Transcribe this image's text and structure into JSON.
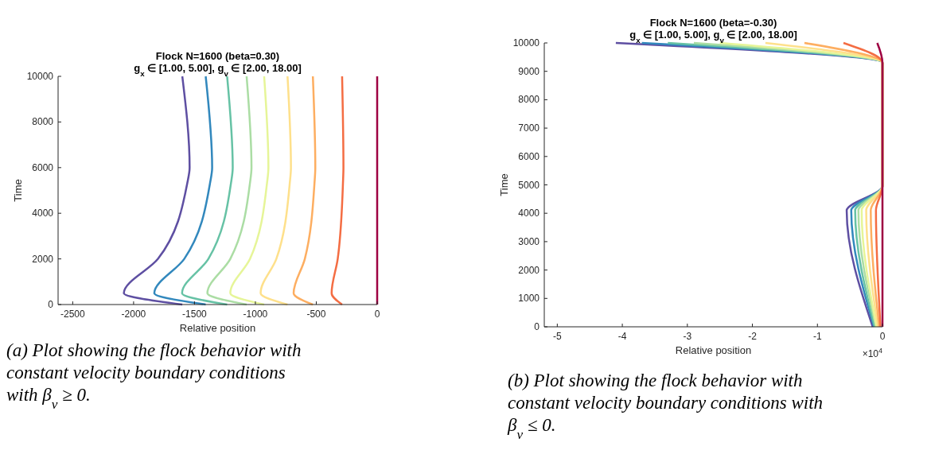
{
  "chart_data": [
    {
      "type": "line",
      "title": "Flock N=1600 (beta=0.30)",
      "subtitle": "g$_{x}$ ∈ [1.00, 5.00], g$_{v}$ ∈ [2.00, 18.00]",
      "xlabel": "Relative position",
      "ylabel": "Time",
      "xlim": [
        -2620,
        0
      ],
      "xticks": [
        -2500,
        -2000,
        -1500,
        -1000,
        -500,
        0
      ],
      "ylim": [
        0,
        10000
      ],
      "yticks": [
        0,
        2000,
        4000,
        6000,
        8000,
        10000
      ],
      "grid": false,
      "marker": "none",
      "line_style": "solid",
      "annotations": [
        "(a) Plot showing the flock behavior with constant velocity boundary conditions with β$_{v}$ ≥ 0."
      ],
      "series": [
        {
          "color": "#5e4fa2",
          "x": [
            -1600,
            -2080,
            -1800,
            -1560,
            -1540,
            -1600
          ],
          "values": [
            0,
            500,
            2000,
            5300,
            6000,
            10000
          ]
        },
        {
          "color": "#3288bd",
          "x": [
            -1408,
            -1830,
            -1584,
            -1373,
            -1355,
            -1408
          ],
          "values": [
            0,
            500,
            2000,
            5300,
            6000,
            10000
          ]
        },
        {
          "color": "#66c2a5",
          "x": [
            -1232,
            -1602,
            -1386,
            -1201,
            -1186,
            -1232
          ],
          "values": [
            0,
            500,
            2000,
            5300,
            6000,
            10000
          ]
        },
        {
          "color": "#abdda4",
          "x": [
            -1072,
            -1394,
            -1206,
            -1045,
            -1032,
            -1072
          ],
          "values": [
            0,
            500,
            2000,
            5300,
            6000,
            10000
          ]
        },
        {
          "color": "#e6f598",
          "x": [
            -928,
            -1206,
            -1044,
            -905,
            -893,
            -928
          ],
          "values": [
            0,
            500,
            2000,
            5300,
            6000,
            10000
          ]
        },
        {
          "color": "#fee08b",
          "x": [
            -736,
            -957,
            -828,
            -718,
            -708,
            -736
          ],
          "values": [
            0,
            500,
            2000,
            5300,
            6000,
            10000
          ]
        },
        {
          "color": "#fdae61",
          "x": [
            -528,
            -686,
            -594,
            -515,
            -508,
            -528
          ],
          "values": [
            0,
            500,
            2000,
            5300,
            6000,
            10000
          ]
        },
        {
          "color": "#f46d43",
          "x": [
            -288,
            -374,
            -324,
            -281,
            -277,
            -288
          ],
          "values": [
            0,
            500,
            2000,
            5300,
            6000,
            10000
          ]
        },
        {
          "color": "#9e0142",
          "x": [
            0,
            0,
            0,
            0,
            0,
            0
          ],
          "values": [
            0,
            500,
            2000,
            5300,
            6000,
            10000
          ]
        }
      ]
    },
    {
      "type": "line",
      "title": "Flock N=1600 (beta=-0.30)",
      "subtitle": "g$_{x}$ ∈ [1.00, 5.00], g$_{v}$ ∈ [2.00, 18.00]",
      "xlabel": "Relative position",
      "ylabel": "Time",
      "xlim": [
        -5.2,
        0
      ],
      "xticks": [
        -5,
        -4,
        -3,
        -2,
        -1,
        0
      ],
      "ylim": [
        0,
        10000
      ],
      "yticks": [
        0,
        1000,
        2000,
        3000,
        4000,
        5000,
        6000,
        7000,
        8000,
        9000,
        10000
      ],
      "grid": false,
      "marker": "none",
      "line_style": "solid",
      "annotations": [
        "×10$^{4}$",
        "(b) Plot showing the flock behavior with constant velocity boundary conditions with β$_{v}$ ≤ 0."
      ],
      "series": [
        {
          "color": "#5e4fa2",
          "x": [
            -0.15,
            -0.55,
            0,
            0,
            -4.1
          ],
          "values": [
            0,
            4100,
            4950,
            9300,
            10000
          ]
        },
        {
          "color": "#3288bd",
          "x": [
            -0.13,
            -0.48,
            0,
            0,
            -3.7
          ],
          "values": [
            0,
            4100,
            4950,
            9300,
            10000
          ]
        },
        {
          "color": "#66c2a5",
          "x": [
            -0.12,
            -0.42,
            0,
            0,
            -3.3
          ],
          "values": [
            0,
            4100,
            4950,
            9300,
            10000
          ]
        },
        {
          "color": "#abdda4",
          "x": [
            -0.1,
            -0.37,
            0,
            0,
            -2.9
          ],
          "values": [
            0,
            4100,
            4950,
            9300,
            10000
          ]
        },
        {
          "color": "#e6f598",
          "x": [
            -0.09,
            -0.32,
            0,
            0,
            -2.5
          ],
          "values": [
            0,
            4100,
            4950,
            9300,
            10000
          ]
        },
        {
          "color": "#fee08b",
          "x": [
            -0.07,
            -0.25,
            0,
            0,
            -1.8
          ],
          "values": [
            0,
            4100,
            4950,
            9300,
            10000
          ]
        },
        {
          "color": "#fdae61",
          "x": [
            -0.05,
            -0.18,
            0,
            0,
            -1.2
          ],
          "values": [
            0,
            4100,
            4950,
            9300,
            10000
          ]
        },
        {
          "color": "#f46d43",
          "x": [
            -0.03,
            -0.1,
            0,
            0,
            -0.6
          ],
          "values": [
            0,
            4100,
            4950,
            9300,
            10000
          ]
        },
        {
          "color": "#9e0142",
          "x": [
            0,
            0,
            0,
            0,
            -0.08
          ],
          "values": [
            0,
            4100,
            4950,
            9300,
            10000
          ]
        }
      ]
    }
  ]
}
